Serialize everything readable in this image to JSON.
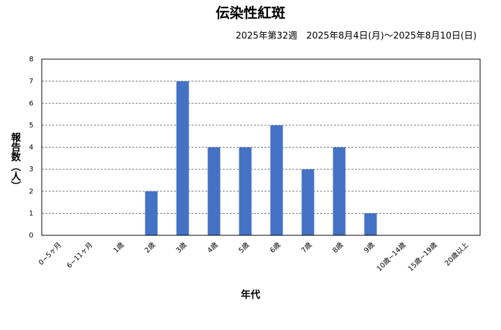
{
  "chart_data": {
    "type": "bar",
    "title": "伝染性紅斑",
    "subtitle": "2025年第32週　2025年8月4日(月)～2025年8月10日(日)",
    "x_label": "年代",
    "y_label": "報告数（人）",
    "categories": [
      "0~5ヶ月",
      "6~11ヶ月",
      "1歳",
      "2歳",
      "3歳",
      "4歳",
      "5歳",
      "6歳",
      "7歳",
      "8歳",
      "9歳",
      "10歳~14歳",
      "15歳~19歳",
      "20歳以上"
    ],
    "values": [
      0,
      0,
      0,
      2,
      7,
      4,
      4,
      5,
      3,
      4,
      1,
      0,
      0,
      0
    ],
    "color": "#4472c4",
    "ylim": [
      0,
      8
    ],
    "yticks": [
      0,
      1,
      2,
      3,
      4,
      5,
      6,
      7,
      8
    ],
    "grid": true
  }
}
